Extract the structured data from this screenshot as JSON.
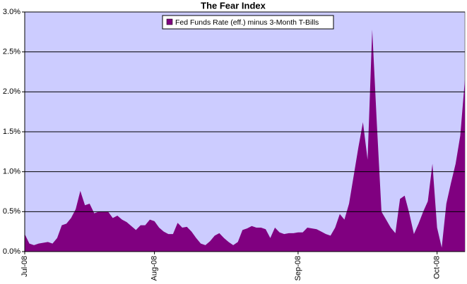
{
  "chart_data": {
    "type": "area",
    "title": "The Fear Index",
    "categories": [
      "Jul-08",
      null,
      null,
      null,
      null,
      null,
      null,
      null,
      null,
      null,
      null,
      null,
      null,
      null,
      null,
      null,
      null,
      null,
      null,
      null,
      null,
      null,
      null,
      null,
      null,
      null,
      null,
      null,
      "Aug-08",
      null,
      null,
      null,
      null,
      null,
      null,
      null,
      null,
      null,
      null,
      null,
      null,
      null,
      null,
      null,
      null,
      null,
      null,
      null,
      null,
      null,
      null,
      null,
      null,
      null,
      null,
      null,
      null,
      null,
      null,
      "Sep-08",
      null,
      null,
      null,
      null,
      null,
      null,
      null,
      null,
      null,
      null,
      null,
      null,
      null,
      null,
      null,
      null,
      null,
      null,
      null,
      null,
      null,
      null,
      null,
      null,
      null,
      null,
      null,
      null,
      null,
      "Oct-08",
      null,
      null,
      null,
      null,
      null,
      null
    ],
    "series": [
      {
        "name": "Fed Funds Rate (eff.) minus 3-Month T-Bills",
        "color": "#800080",
        "values": [
          0.22,
          0.1,
          0.08,
          0.1,
          0.11,
          0.12,
          0.1,
          0.17,
          0.33,
          0.35,
          0.42,
          0.53,
          0.76,
          0.58,
          0.6,
          0.48,
          0.5,
          0.5,
          0.5,
          0.42,
          0.45,
          0.4,
          0.37,
          0.32,
          0.27,
          0.33,
          0.33,
          0.4,
          0.38,
          0.3,
          0.25,
          0.22,
          0.22,
          0.36,
          0.3,
          0.31,
          0.25,
          0.17,
          0.1,
          0.08,
          0.13,
          0.2,
          0.23,
          0.17,
          0.12,
          0.08,
          0.12,
          0.27,
          0.29,
          0.32,
          0.3,
          0.3,
          0.28,
          0.17,
          0.3,
          0.24,
          0.22,
          0.23,
          0.23,
          0.24,
          0.24,
          0.3,
          0.29,
          0.28,
          0.25,
          0.22,
          0.2,
          0.3,
          0.47,
          0.4,
          0.6,
          0.95,
          1.3,
          1.62,
          1.15,
          2.78,
          1.6,
          0.5,
          0.4,
          0.3,
          0.23,
          0.66,
          0.7,
          0.48,
          0.22,
          0.35,
          0.5,
          0.63,
          1.1,
          0.3,
          0.05,
          0.6,
          0.86,
          1.1,
          1.45,
          2.15
        ]
      }
    ],
    "ylim": [
      0,
      3
    ],
    "yticks": [
      {
        "value": 0,
        "label": "0.0%"
      },
      {
        "value": 0.5,
        "label": "0.5%"
      },
      {
        "value": 1,
        "label": "1.0%"
      },
      {
        "value": 1.5,
        "label": "1.5%"
      },
      {
        "value": 2,
        "label": "2.0%"
      },
      {
        "value": 2.5,
        "label": "2.5%"
      },
      {
        "value": 3,
        "label": "3.0%"
      }
    ],
    "grid": true,
    "plot_background": "#ccccff",
    "legend": "top"
  }
}
